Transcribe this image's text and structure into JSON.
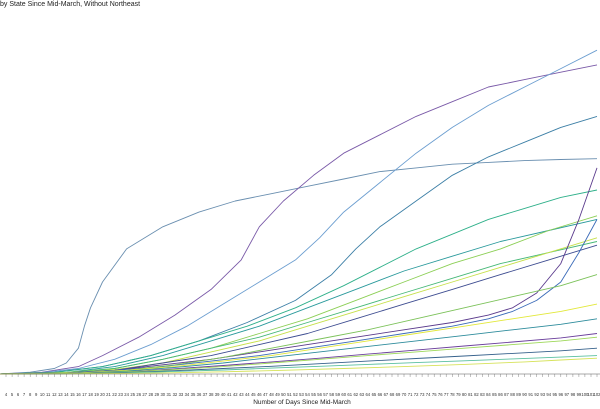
{
  "chart_data": {
    "type": "line",
    "title": "by State Since Mid-March, Without Northeast",
    "xlabel": "Number of Days Since Mid-March",
    "ylabel": "",
    "x_ticks": [
      4,
      5,
      6,
      7,
      8,
      9,
      10,
      11,
      12,
      13,
      14,
      15,
      16,
      17,
      18,
      19,
      20,
      21,
      22,
      23,
      24,
      25,
      26,
      27,
      28,
      29,
      30,
      31,
      32,
      33,
      34,
      35,
      36,
      37,
      38,
      39,
      40,
      41,
      42,
      43,
      44,
      45,
      46,
      47,
      48,
      49,
      50,
      51,
      52,
      53,
      54,
      55,
      56,
      57,
      58,
      59,
      60,
      61,
      62,
      63,
      64,
      65,
      66,
      67,
      68,
      69,
      70,
      71,
      72,
      73,
      74,
      75,
      76,
      77,
      78,
      79,
      80,
      81,
      82,
      83,
      84,
      85,
      86,
      87,
      88,
      89,
      90,
      91,
      92,
      93,
      94,
      95,
      96,
      97,
      98,
      99,
      100,
      101,
      102
    ],
    "xlim": [
      3,
      102.5
    ],
    "ylim": [
      0,
      100
    ],
    "grid": false,
    "legend": "none",
    "series": [
      {
        "color": "#6a8fb0",
        "x": [
          3,
          8,
          12,
          14,
          16,
          17,
          18,
          20,
          24,
          30,
          36,
          42,
          48,
          54,
          60,
          66,
          72,
          78,
          84,
          90,
          96,
          102
        ],
        "y": [
          0,
          0.5,
          1.5,
          3,
          7,
          13,
          18,
          25,
          34,
          40,
          44,
          47,
          49,
          51,
          53,
          55,
          56,
          57,
          57.5,
          58,
          58.3,
          58.5
        ]
      },
      {
        "color": "#7a5aa8",
        "x": [
          3,
          10,
          16,
          20,
          26,
          32,
          38,
          43,
          46,
          50,
          55,
          60,
          66,
          72,
          78,
          84,
          90,
          96,
          102
        ],
        "y": [
          0,
          0.5,
          2,
          5,
          10,
          16,
          23,
          31,
          40,
          47,
          54,
          60,
          65,
          70,
          74,
          78,
          80,
          82,
          84
        ]
      },
      {
        "color": "#6c9ed0",
        "x": [
          3,
          10,
          16,
          22,
          28,
          34,
          40,
          46,
          52,
          56,
          60,
          66,
          72,
          78,
          84,
          90,
          96,
          102
        ],
        "y": [
          0,
          0.4,
          1.5,
          4,
          8,
          13,
          19,
          25,
          31,
          37,
          44,
          52,
          60,
          67,
          73,
          78,
          83,
          88
        ]
      },
      {
        "color": "#3c7fa6",
        "x": [
          3,
          12,
          20,
          28,
          36,
          44,
          52,
          58,
          62,
          66,
          72,
          78,
          84,
          90,
          96,
          102
        ],
        "y": [
          0,
          0.5,
          2,
          5,
          9,
          14,
          20,
          27,
          34,
          40,
          47,
          54,
          59,
          63,
          67,
          70
        ]
      },
      {
        "color": "#2fb08a",
        "x": [
          3,
          12,
          20,
          28,
          36,
          44,
          52,
          60,
          66,
          72,
          78,
          84,
          90,
          96,
          102
        ],
        "y": [
          0,
          0.4,
          2,
          5,
          9,
          13,
          18,
          24,
          29,
          34,
          38,
          42,
          45,
          48,
          50
        ]
      },
      {
        "color": "#2a9a9c",
        "x": [
          3,
          14,
          22,
          30,
          38,
          46,
          54,
          62,
          70,
          78,
          86,
          94,
          102
        ],
        "y": [
          0,
          0.4,
          2,
          5,
          9,
          13,
          18,
          23,
          28,
          32,
          36,
          39,
          42
        ]
      },
      {
        "color": "#8ccf55",
        "x": [
          3,
          14,
          22,
          30,
          38,
          46,
          54,
          62,
          70,
          78,
          86,
          94,
          102
        ],
        "y": [
          0,
          0.4,
          1.5,
          4,
          7,
          11,
          15,
          20,
          25,
          30,
          34,
          39,
          43
        ]
      },
      {
        "color": "#46b877",
        "x": [
          3,
          14,
          22,
          30,
          38,
          46,
          54,
          62,
          70,
          78,
          86,
          94,
          102
        ],
        "y": [
          0,
          0.3,
          1.5,
          4,
          7,
          10,
          14,
          18,
          22,
          26,
          30,
          33,
          36
        ]
      },
      {
        "color": "#c6e04a",
        "x": [
          3,
          14,
          22,
          30,
          38,
          46,
          54,
          62,
          70,
          78,
          86,
          94,
          102
        ],
        "y": [
          0,
          0.3,
          1.2,
          3,
          6,
          9,
          13,
          17,
          21,
          25,
          29,
          33,
          37
        ]
      },
      {
        "color": "#3e4d91",
        "x": [
          3,
          14,
          22,
          30,
          38,
          46,
          54,
          62,
          70,
          78,
          86,
          94,
          102
        ],
        "y": [
          0,
          0.3,
          1,
          3,
          5,
          8,
          11,
          15,
          19,
          23,
          27,
          31,
          35
        ]
      },
      {
        "color": "#5a3a8c",
        "x": [
          3,
          14,
          22,
          30,
          38,
          46,
          54,
          62,
          70,
          78,
          84,
          88,
          92,
          96,
          99,
          102
        ],
        "y": [
          0,
          0.3,
          1,
          2.5,
          4,
          6,
          8,
          10,
          12,
          14,
          16,
          18,
          22,
          30,
          42,
          56
        ]
      },
      {
        "color": "#3a6ab8",
        "x": [
          3,
          14,
          22,
          30,
          38,
          46,
          54,
          62,
          70,
          78,
          84,
          88,
          92,
          96,
          99,
          102
        ],
        "y": [
          0,
          0.3,
          1,
          2,
          3.5,
          5,
          7,
          9,
          11,
          13,
          15,
          17,
          20,
          25,
          33,
          42
        ]
      },
      {
        "color": "#7cc25a",
        "x": [
          3,
          16,
          24,
          32,
          40,
          48,
          56,
          64,
          72,
          80,
          88,
          96,
          102
        ],
        "y": [
          0,
          0.3,
          1,
          2.5,
          4.5,
          7,
          9.5,
          12,
          15,
          18,
          21,
          24,
          27
        ]
      },
      {
        "color": "#e2e83a",
        "x": [
          3,
          16,
          24,
          32,
          40,
          48,
          56,
          64,
          72,
          80,
          88,
          96,
          102
        ],
        "y": [
          0,
          0.3,
          1,
          2,
          3.5,
          5,
          7,
          9,
          11,
          13,
          15,
          17,
          19
        ]
      },
      {
        "color": "#2e8c9c",
        "x": [
          3,
          16,
          24,
          32,
          40,
          48,
          56,
          64,
          72,
          80,
          88,
          96,
          102
        ],
        "y": [
          0,
          0.2,
          0.8,
          1.8,
          3,
          4.5,
          6,
          7.5,
          9,
          10.5,
          12,
          13.5,
          15
        ]
      },
      {
        "color": "#6b3f9c",
        "x": [
          3,
          16,
          24,
          32,
          40,
          48,
          56,
          64,
          72,
          80,
          88,
          96,
          102
        ],
        "y": [
          0,
          0.2,
          0.6,
          1.4,
          2.3,
          3.3,
          4.3,
          5.4,
          6.5,
          7.6,
          8.7,
          9.8,
          11
        ]
      },
      {
        "color": "#9ed85a",
        "x": [
          3,
          16,
          24,
          32,
          40,
          48,
          56,
          64,
          72,
          80,
          88,
          96,
          102
        ],
        "y": [
          0,
          0.2,
          0.6,
          1.2,
          2,
          3,
          4,
          5,
          6,
          7,
          8,
          9,
          10
        ]
      },
      {
        "color": "#37628c",
        "x": [
          3,
          16,
          24,
          32,
          40,
          48,
          56,
          64,
          72,
          80,
          88,
          96,
          102
        ],
        "y": [
          0,
          0.1,
          0.4,
          0.9,
          1.5,
          2.1,
          2.8,
          3.5,
          4.2,
          4.9,
          5.6,
          6.3,
          7
        ]
      },
      {
        "color": "#5bc0a0",
        "x": [
          3,
          16,
          24,
          32,
          40,
          48,
          56,
          64,
          72,
          80,
          88,
          96,
          102
        ],
        "y": [
          0,
          0.1,
          0.3,
          0.7,
          1.1,
          1.6,
          2.1,
          2.6,
          3.1,
          3.6,
          4.1,
          4.6,
          5
        ]
      },
      {
        "color": "#d6e25a",
        "x": [
          3,
          20,
          30,
          40,
          50,
          60,
          70,
          80,
          90,
          96,
          102
        ],
        "y": [
          0,
          0.1,
          0.3,
          0.6,
          1,
          1.5,
          2,
          2.6,
          3.3,
          3.8,
          4.3
        ]
      }
    ]
  }
}
